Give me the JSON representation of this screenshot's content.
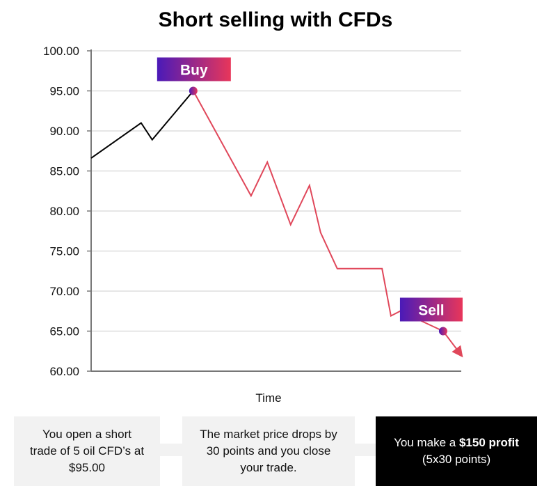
{
  "chart_data": {
    "type": "line",
    "title": "Short selling with CFDs",
    "xlabel": "Time",
    "ylabel": "",
    "ylim": [
      60,
      100
    ],
    "xlim": [
      0,
      100
    ],
    "yticks": [
      "60.00",
      "65.00",
      "70.00",
      "75.00",
      "80.00",
      "85.00",
      "90.00",
      "95.00",
      "100.00"
    ],
    "grid": true,
    "series": [
      {
        "color": "#000000",
        "x": [
          0,
          13.5,
          16.5,
          27.6
        ],
        "y": [
          86.6,
          91.0,
          88.9,
          95.0
        ]
      },
      {
        "color": "#e0475a",
        "x": [
          27.6,
          43.2,
          47.6,
          53.9,
          59.0,
          62.0,
          66.5,
          78.6,
          81.0,
          83.5,
          95.1,
          100
        ],
        "y": [
          95.0,
          81.9,
          86.1,
          78.3,
          83.2,
          77.3,
          72.8,
          72.8,
          66.9,
          67.5,
          65.0,
          62.0
        ],
        "arrow_end": true
      }
    ],
    "annotations": [
      {
        "label": "Buy",
        "x": 27.6,
        "y": 95.0
      },
      {
        "label": "Sell",
        "x": 95.1,
        "y": 65.0
      }
    ],
    "colors": {
      "gradient_start": "#4a1ab8",
      "gradient_end": "#e8365a",
      "grid": "#dddddd",
      "axis": "#777777"
    }
  },
  "steps": [
    {
      "text": "You open a short trade of 5 oil CFD’s at $95.00"
    },
    {
      "text": "The market price drops by 30 points and you close your trade."
    },
    {
      "text_before": "You make a ",
      "text_bold": "$150 profit",
      "text_after": "(5x30 points)"
    }
  ]
}
